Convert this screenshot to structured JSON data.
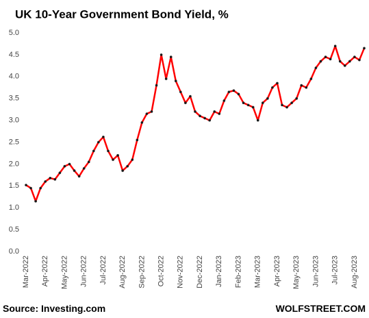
{
  "chart_data": {
    "type": "line",
    "title": "UK 10-Year Government Bond Yield, %",
    "source": "Source: Investing.com",
    "brand": "WOLFSTREET.COM",
    "categories": [
      "Mar-2022",
      null,
      null,
      null,
      "Apr-2022",
      null,
      null,
      null,
      "May-2022",
      null,
      null,
      null,
      "Jun-2022",
      null,
      null,
      null,
      "Jul-2022",
      null,
      null,
      null,
      "Aug-2022",
      null,
      null,
      null,
      "Sep-2022",
      null,
      null,
      null,
      "Oct-2022",
      null,
      null,
      null,
      "Nov-2022",
      null,
      null,
      null,
      "Dec-2022",
      null,
      null,
      null,
      "Jan-2023",
      null,
      null,
      null,
      "Feb-2023",
      null,
      null,
      null,
      "Mar-2023",
      null,
      null,
      null,
      "Apr-2023",
      null,
      null,
      null,
      "May-2023",
      null,
      null,
      null,
      "Jun-2023",
      null,
      null,
      null,
      "Jul-2023",
      null,
      null,
      null,
      "Aug-2023",
      null,
      null
    ],
    "series": [
      {
        "name": "UK 10-Year Government Bond Yield",
        "color": "#ff0000",
        "marker_color": "#1a1a1a",
        "values": [
          1.52,
          1.45,
          1.15,
          1.45,
          1.6,
          1.68,
          1.65,
          1.8,
          1.95,
          2.0,
          1.85,
          1.72,
          1.9,
          2.05,
          2.3,
          2.5,
          2.62,
          2.3,
          2.1,
          2.2,
          1.85,
          1.95,
          2.1,
          2.55,
          2.95,
          3.15,
          3.2,
          3.8,
          4.5,
          3.95,
          4.45,
          3.9,
          3.65,
          3.4,
          3.55,
          3.2,
          3.1,
          3.05,
          3.0,
          3.2,
          3.15,
          3.45,
          3.65,
          3.68,
          3.6,
          3.4,
          3.35,
          3.3,
          3.0,
          3.4,
          3.5,
          3.75,
          3.85,
          3.35,
          3.3,
          3.4,
          3.5,
          3.8,
          3.75,
          3.95,
          4.2,
          4.35,
          4.45,
          4.4,
          4.7,
          4.35,
          4.25,
          4.35,
          4.45,
          4.38,
          4.65
        ]
      }
    ],
    "ylim": [
      0,
      5
    ],
    "yticks": [
      {
        "value": 0,
        "label": "0.0"
      },
      {
        "value": 0.5,
        "label": "0.5"
      },
      {
        "value": 1,
        "label": "1.0"
      },
      {
        "value": 1.5,
        "label": "1.5"
      },
      {
        "value": 2,
        "label": "2.0"
      },
      {
        "value": 2.5,
        "label": "2.5"
      },
      {
        "value": 3,
        "label": "3.0"
      },
      {
        "value": 3.5,
        "label": "3.5"
      },
      {
        "value": 4,
        "label": "4.0"
      },
      {
        "value": 4.5,
        "label": "4.5"
      },
      {
        "value": 5,
        "label": "5.0"
      }
    ],
    "grid": false
  }
}
